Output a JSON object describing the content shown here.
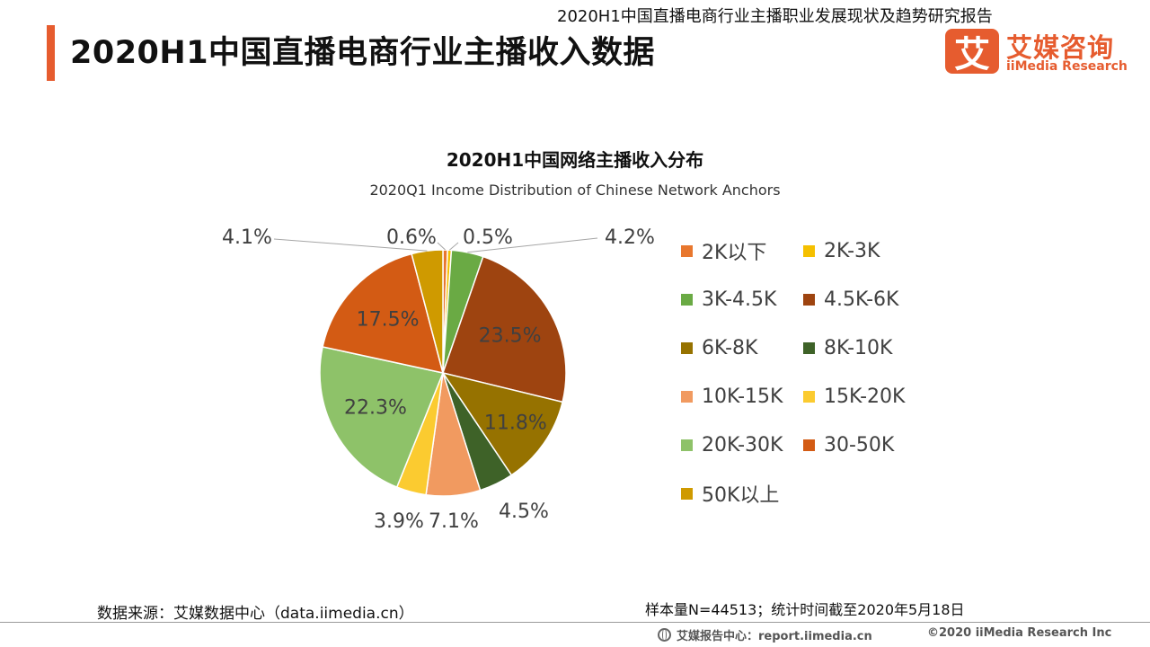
{
  "header": {
    "report_name": "2020H1中国直播电商行业主播职业发展现状及趋势研究报告",
    "page_title": "2020H1中国直播电商行业主播收入数据",
    "accent_color": "#e65c2f"
  },
  "logo": {
    "mark_char": "艾",
    "name_cn": "艾媒咨询",
    "name_en": "iiMedia Research",
    "icon": "iimedia-logo-icon"
  },
  "chart_data": {
    "type": "pie",
    "title": "2020H1中国网络主播收入分布",
    "subtitle": "2020Q1 Income Distribution of Chinese Network Anchors",
    "unit": "%",
    "legend_position": "right",
    "start_angle_deg": 0,
    "direction": "clockwise",
    "slices": [
      {
        "label": "2K以下",
        "value": 0.6,
        "display": "0.6%",
        "color": "#e8772e"
      },
      {
        "label": "2K-3K",
        "value": 0.5,
        "display": "0.5%",
        "color": "#f5c000"
      },
      {
        "label": "3K-4.5K",
        "value": 4.2,
        "display": "4.2%",
        "color": "#6aaa44"
      },
      {
        "label": "4.5K-6K",
        "value": 23.5,
        "display": "23.5%",
        "color": "#9e4410"
      },
      {
        "label": "6K-8K",
        "value": 11.8,
        "display": "11.8%",
        "color": "#967200"
      },
      {
        "label": "8K-10K",
        "value": 4.5,
        "display": "4.5%",
        "color": "#3e6228"
      },
      {
        "label": "10K-15K",
        "value": 7.1,
        "display": "7.1%",
        "color": "#f19a60"
      },
      {
        "label": "15K-20K",
        "value": 3.9,
        "display": "3.9%",
        "color": "#fbcb30"
      },
      {
        "label": "20K-30K",
        "value": 22.3,
        "display": "22.3%",
        "color": "#8ec269"
      },
      {
        "label": "30-50K",
        "value": 17.5,
        "display": "17.5%",
        "color": "#d35b14"
      },
      {
        "label": "50K以上",
        "value": 4.1,
        "display": "4.1%",
        "color": "#cf9a00"
      }
    ]
  },
  "footer": {
    "source": "数据来源：艾媒数据中心（data.iimedia.cn）",
    "sample": "样本量N=44513；统计时间截至2020年5月18日",
    "center": "艾媒报告中心：report.iimedia.cn",
    "copyright": "©2020  iiMedia Research  Inc",
    "center_icon": "globe-icon"
  }
}
